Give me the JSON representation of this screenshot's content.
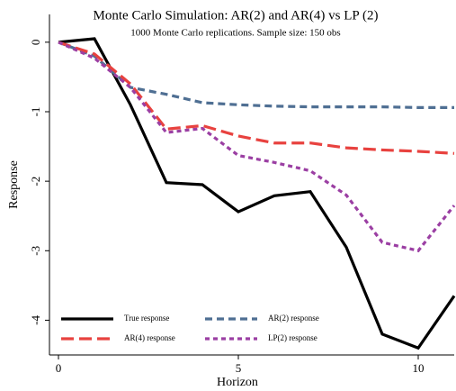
{
  "chart_data": {
    "type": "line",
    "title": "Monte Carlo Simulation: AR(2) and AR(4) vs LP (2)",
    "subtitle": "1000 Monte Carlo replications. Sample size: 150 obs",
    "x_label": "Horizon",
    "y_label": "Response",
    "x": [
      0,
      1,
      2,
      3,
      4,
      5,
      6,
      7,
      8,
      9,
      10,
      11
    ],
    "series": [
      {
        "name": "True response",
        "color": "#000000",
        "dash": "solid",
        "values": [
          0,
          0.05,
          -0.9,
          -2.02,
          -2.05,
          -2.44,
          -2.21,
          -2.15,
          -2.95,
          -4.2,
          -4.4,
          -3.65
        ]
      },
      {
        "name": "AR(2) response",
        "color": "#4f6f93",
        "dash": "dash",
        "values": [
          0,
          -0.2,
          -0.65,
          -0.75,
          -0.87,
          -0.9,
          -0.92,
          -0.93,
          -0.93,
          -0.93,
          -0.94,
          -0.94
        ]
      },
      {
        "name": "AR(4) response",
        "color": "#e8423f",
        "dash": "longdash",
        "values": [
          0,
          -0.17,
          -0.6,
          -1.25,
          -1.2,
          -1.35,
          -1.45,
          -1.45,
          -1.52,
          -1.55,
          -1.57,
          -1.6
        ]
      },
      {
        "name": "LP(2) response",
        "color": "#9b3fa3",
        "dash": "shortdash",
        "values": [
          0,
          -0.23,
          -0.65,
          -1.3,
          -1.24,
          -1.63,
          -1.73,
          -1.85,
          -2.2,
          -2.88,
          -3.0,
          -2.35
        ]
      }
    ],
    "xlim": [
      -0.25,
      11
    ],
    "xticks": [
      0,
      5,
      10
    ],
    "ylim": [
      -4.5,
      0.4
    ],
    "yticks": [
      0,
      -1,
      -2,
      -3,
      -4
    ]
  }
}
